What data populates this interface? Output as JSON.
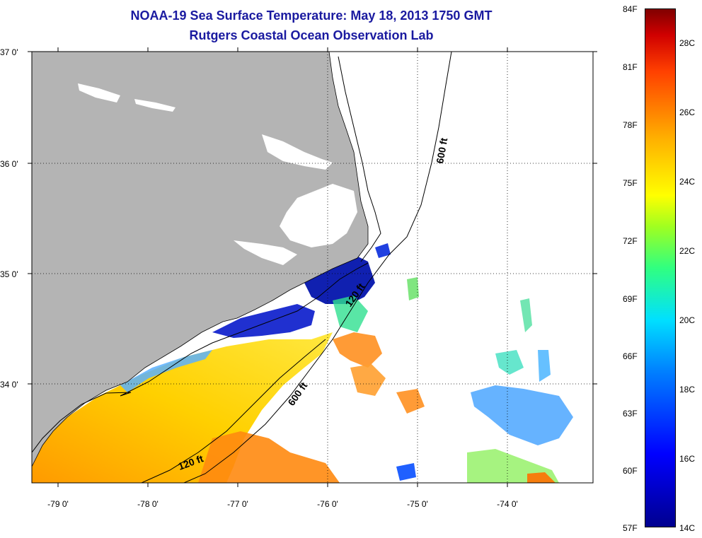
{
  "title_line1": "NOAA-19 Sea Surface Temperature:  May 18, 2013 1750 GMT",
  "title_line2": "Rutgers Coastal Ocean Observation Lab",
  "lat_labels": [
    "37 0'",
    "36 0'",
    "35 0'",
    "34 0'"
  ],
  "lon_labels": [
    "-79 0'",
    "-78 0'",
    "-77 0'",
    "-76 0'",
    "-75 0'",
    "-74 0'"
  ],
  "isobath_labels": [
    "600 ft",
    "600 ft",
    "120 ft",
    "120 ft"
  ],
  "colorbar": {
    "fahrenheit": [
      "84F",
      "81F",
      "78F",
      "75F",
      "72F",
      "69F",
      "66F",
      "63F",
      "60F",
      "57F"
    ],
    "celsius": [
      "28C",
      "26C",
      "24C",
      "22C",
      "20C",
      "18C",
      "16C",
      "14C"
    ]
  },
  "colors": {
    "land": "#b4b4b4",
    "title": "#1a1aa0",
    "no_data": "#ffffff"
  }
}
